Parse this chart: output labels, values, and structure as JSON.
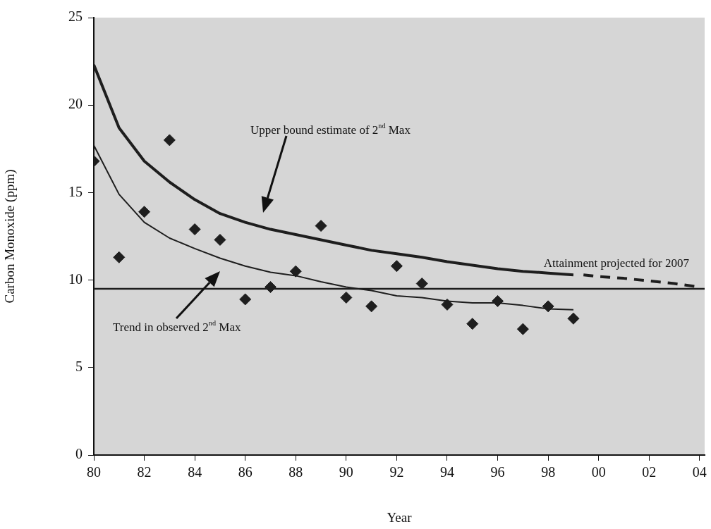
{
  "chart_data": {
    "type": "line",
    "xlabel": "Year",
    "ylabel": "Carbon Monoxide (ppm)",
    "xlim": [
      1980,
      2004.2
    ],
    "xticks": [
      {
        "value": 1980,
        "label": "80"
      },
      {
        "value": 1982,
        "label": "82"
      },
      {
        "value": 1984,
        "label": "84"
      },
      {
        "value": 1986,
        "label": "86"
      },
      {
        "value": 1988,
        "label": "88"
      },
      {
        "value": 1990,
        "label": "90"
      },
      {
        "value": 1992,
        "label": "92"
      },
      {
        "value": 1994,
        "label": "94"
      },
      {
        "value": 1996,
        "label": "96"
      },
      {
        "value": 1998,
        "label": "98"
      },
      {
        "value": 2000,
        "label": "00"
      },
      {
        "value": 2002,
        "label": "02"
      },
      {
        "value": 2004,
        "label": "04"
      }
    ],
    "ylim": [
      0,
      25
    ],
    "yticks": [
      0,
      5,
      10,
      15,
      20,
      25
    ],
    "grid": false,
    "legend": false,
    "series": [
      {
        "type": "scatter",
        "color": "#1e1e1e",
        "marker": "diamond",
        "x": [
          1980,
          1981,
          1982,
          1983,
          1984,
          1985,
          1986,
          1987,
          1988,
          1989,
          1990,
          1991,
          1992,
          1993,
          1994,
          1995,
          1996,
          1997,
          1998,
          1999
        ],
        "values": [
          16.8,
          11.3,
          13.9,
          18.0,
          12.9,
          12.3,
          8.9,
          9.6,
          10.5,
          13.1,
          9.0,
          8.5,
          10.8,
          9.8,
          8.6,
          7.5,
          8.8,
          7.2,
          8.5,
          7.8
        ]
      },
      {
        "type": "line",
        "color": "#1e1e1e",
        "marker": "none",
        "line_style": "solid",
        "x": [
          1980,
          1981,
          1982,
          1983,
          1984,
          1985,
          1986,
          1987,
          1988,
          1989,
          1990,
          1991,
          1992,
          1993,
          1994,
          1995,
          1996,
          1997,
          1998,
          1999
        ],
        "values": [
          22.3,
          18.7,
          16.8,
          15.6,
          14.6,
          13.8,
          13.3,
          12.9,
          12.6,
          12.3,
          12.0,
          11.7,
          11.5,
          11.3,
          11.05,
          10.85,
          10.65,
          10.5,
          10.4,
          10.3
        ]
      },
      {
        "type": "line",
        "color": "#1e1e1e",
        "marker": "none",
        "line_style": "dashed",
        "x": [
          1999.4,
          2000,
          2001,
          2002,
          2003,
          2004
        ],
        "values": [
          10.3,
          10.2,
          10.1,
          9.95,
          9.8,
          9.6
        ]
      },
      {
        "type": "line",
        "color": "#1e1e1e",
        "marker": "none",
        "line_style": "solid",
        "x": [
          1980,
          1981,
          1982,
          1983,
          1984,
          1985,
          1986,
          1987,
          1988,
          1989,
          1990,
          1991,
          1992,
          1993,
          1994,
          1995,
          1996,
          1997,
          1998,
          1999
        ],
        "values": [
          17.7,
          14.9,
          13.3,
          12.4,
          11.8,
          11.25,
          10.8,
          10.45,
          10.25,
          9.9,
          9.6,
          9.4,
          9.1,
          9.0,
          8.8,
          8.7,
          8.7,
          8.55,
          8.35,
          8.3
        ]
      }
    ],
    "ref_lines": [
      {
        "axis": "y",
        "value": 9.5,
        "label": "Attainment projected for 2007",
        "color": "#1e1e1e"
      }
    ],
    "annotations": [
      "Upper bound estimate of 2$^{nd}$ Max",
      "Trend in observed 2$^{nd}$ Max"
    ]
  }
}
